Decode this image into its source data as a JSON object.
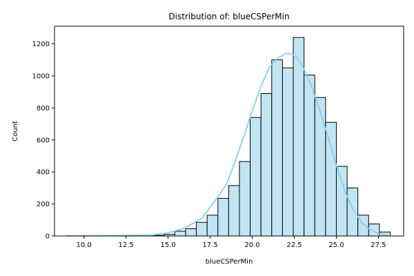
{
  "chart_data": {
    "type": "bar",
    "title": "Distribution of: blueCSPerMin",
    "xlabel": "blueCSPerMin",
    "ylabel": "Count",
    "xlim": [
      8.25,
      29.0
    ],
    "ylim": [
      0,
      1310
    ],
    "x_ticks": [
      10.0,
      12.5,
      15.0,
      17.5,
      20.0,
      22.5,
      25.0,
      27.5
    ],
    "y_ticks": [
      0,
      200,
      400,
      600,
      800,
      1000,
      1200
    ],
    "x_tick_labels": [
      "10.0",
      "12.5",
      "15.0",
      "17.5",
      "20.0",
      "22.5",
      "25.0",
      "27.5"
    ],
    "y_tick_labels": [
      "0",
      "200",
      "400",
      "600",
      "800",
      "1000",
      "1200"
    ],
    "bins": {
      "edges": [
        9.0,
        9.64,
        10.28,
        10.92,
        11.56,
        12.2,
        12.84,
        13.48,
        14.12,
        14.76,
        15.4,
        16.04,
        16.68,
        17.32,
        17.96,
        18.6,
        19.24,
        19.88,
        20.52,
        21.16,
        21.8,
        22.44,
        23.08,
        23.72,
        24.36,
        25.0,
        25.64,
        26.28,
        26.92,
        27.56,
        28.2
      ],
      "counts": [
        1,
        0,
        0,
        0,
        0,
        1,
        0,
        2,
        4,
        10,
        30,
        45,
        85,
        130,
        235,
        315,
        465,
        740,
        890,
        1100,
        1050,
        1240,
        1005,
        865,
        710,
        435,
        300,
        130,
        75,
        25
      ]
    },
    "kde": {
      "x": [
        9.0,
        14.0,
        15.0,
        16.0,
        17.0,
        18.0,
        18.5,
        19.0,
        19.5,
        20.0,
        20.5,
        21.0,
        21.5,
        22.0,
        22.3,
        22.6,
        23.0,
        23.5,
        24.0,
        24.5,
        25.0,
        25.5,
        26.0,
        26.5,
        27.0,
        27.5,
        28.2
      ],
      "y": [
        0,
        5,
        20,
        50,
        110,
        250,
        330,
        470,
        620,
        780,
        930,
        1050,
        1110,
        1140,
        1140,
        1120,
        1060,
        940,
        790,
        620,
        440,
        280,
        165,
        85,
        40,
        15,
        3
      ]
    },
    "bar_fill": "#c1e5f2",
    "bar_edge": "#000000",
    "kde_color": "#87ceeb",
    "grid": false,
    "legend": "none"
  }
}
